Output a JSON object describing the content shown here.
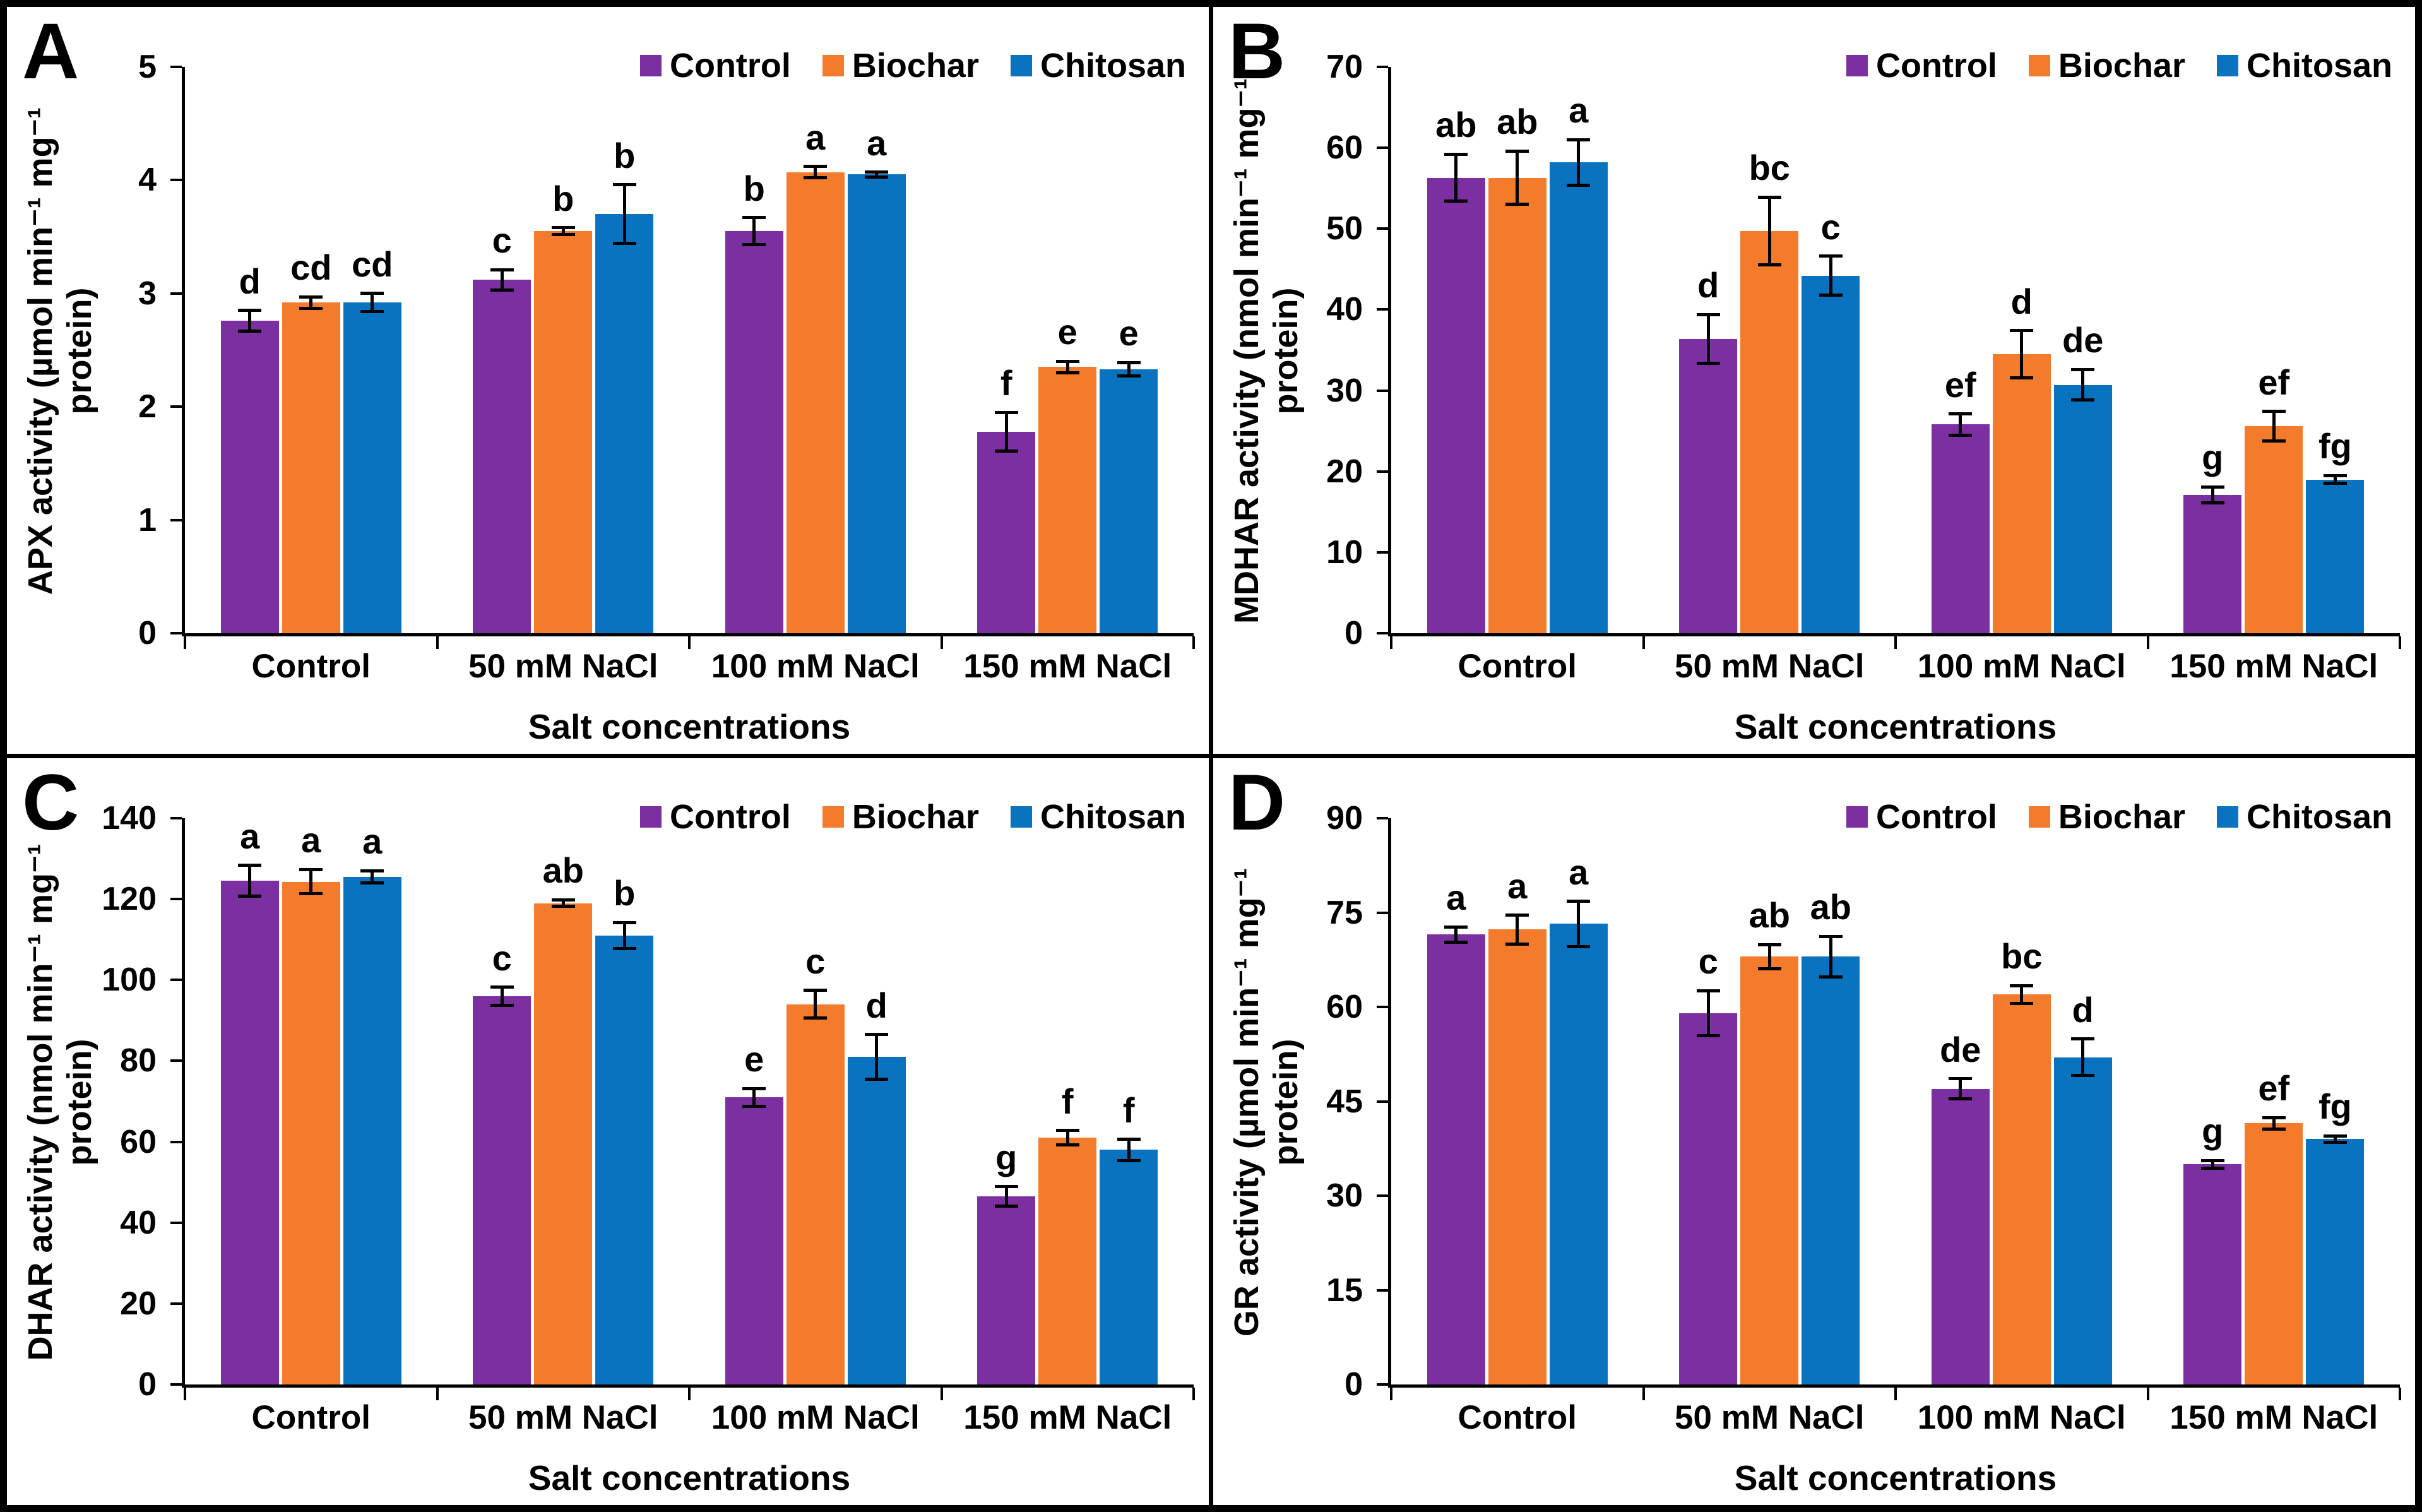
{
  "colors": {
    "series_colors": [
      "#7C2FA0",
      "#F57B2C",
      "#0A73BF"
    ],
    "axis": "#000000",
    "error_bar": "#000000",
    "panel_background": "#FFFFFF",
    "figure_border": "#000000"
  },
  "legend": [
    "Control",
    "Biochar",
    "Chitosan"
  ],
  "xlabel": "Salt concentrations",
  "categories": [
    "Control",
    "50 mM NaCl",
    "100 mM NaCl",
    "150 mM NaCl"
  ],
  "chart_data": [
    {
      "type": "bar",
      "panel": "A",
      "ylabel_lines": [
        "APX activity (µmol min⁻¹ mg⁻¹",
        "protein)"
      ],
      "xlabel": "Salt concentrations",
      "categories": [
        "Control",
        "50 mM NaCl",
        "100 mM NaCl",
        "150 mM NaCl"
      ],
      "ylim": [
        0,
        5
      ],
      "yticks": [
        0,
        1,
        2,
        3,
        4,
        5
      ],
      "grid": false,
      "legend_position": "top-right",
      "series": [
        {
          "name": "Control",
          "values": [
            2.76,
            3.12,
            3.55,
            1.78
          ],
          "errors": [
            0.09,
            0.09,
            0.12,
            0.17
          ],
          "letters": [
            "d",
            "c",
            "b",
            "f"
          ]
        },
        {
          "name": "Biochar",
          "values": [
            2.92,
            3.55,
            4.07,
            2.35
          ],
          "errors": [
            0.05,
            0.03,
            0.05,
            0.05
          ],
          "letters": [
            "cd",
            "b",
            "a",
            "e"
          ]
        },
        {
          "name": "Chitosan",
          "values": [
            2.92,
            3.7,
            4.05,
            2.33
          ],
          "errors": [
            0.08,
            0.26,
            0.02,
            0.06
          ],
          "letters": [
            "cd",
            "b",
            "a",
            "e"
          ]
        }
      ]
    },
    {
      "type": "bar",
      "panel": "B",
      "ylabel_lines": [
        "MDHAR activity (nmol min⁻¹ mg⁻¹",
        "protein)"
      ],
      "xlabel": "Salt concentrations",
      "categories": [
        "Control",
        "50 mM NaCl",
        "100 mM NaCl",
        "150 mM NaCl"
      ],
      "ylim": [
        0,
        70
      ],
      "yticks": [
        0,
        10,
        20,
        30,
        40,
        50,
        60,
        70
      ],
      "grid": false,
      "legend_position": "top-right",
      "series": [
        {
          "name": "Control",
          "values": [
            56.3,
            36.4,
            25.8,
            17.1
          ],
          "errors": [
            2.9,
            3.0,
            1.3,
            1.0
          ],
          "letters": [
            "ab",
            "d",
            "ef",
            "g"
          ]
        },
        {
          "name": "Biochar",
          "values": [
            56.3,
            49.7,
            34.5,
            25.6
          ],
          "errors": [
            3.3,
            4.2,
            2.9,
            1.8
          ],
          "letters": [
            "ab",
            "bc",
            "d",
            "ef"
          ]
        },
        {
          "name": "Chitosan",
          "values": [
            58.2,
            44.2,
            30.7,
            19.0
          ],
          "errors": [
            2.8,
            2.4,
            1.9,
            0.5
          ],
          "letters": [
            "a",
            "c",
            "de",
            "fg"
          ]
        }
      ]
    },
    {
      "type": "bar",
      "panel": "C",
      "ylabel_lines": [
        "DHAR activity (nmol min⁻¹ mg⁻¹",
        "protein)"
      ],
      "xlabel": "Salt concentrations",
      "categories": [
        "Control",
        "50 mM NaCl",
        "100 mM NaCl",
        "150 mM NaCl"
      ],
      "ylim": [
        0,
        140
      ],
      "yticks": [
        0,
        20,
        40,
        60,
        80,
        100,
        120,
        140
      ],
      "grid": false,
      "legend_position": "top-right",
      "series": [
        {
          "name": "Control",
          "values": [
            124.5,
            96.0,
            71.0,
            46.5
          ],
          "errors": [
            3.8,
            2.2,
            2.2,
            2.4
          ],
          "letters": [
            "a",
            "c",
            "e",
            "g"
          ]
        },
        {
          "name": "Biochar",
          "values": [
            124.3,
            119.0,
            94.0,
            61.0
          ],
          "errors": [
            3.0,
            0.8,
            3.4,
            1.8
          ],
          "letters": [
            "a",
            "ab",
            "c",
            "f"
          ]
        },
        {
          "name": "Chitosan",
          "values": [
            125.5,
            111.0,
            81.0,
            58.0
          ],
          "errors": [
            1.5,
            3.2,
            5.5,
            2.6
          ],
          "letters": [
            "a",
            "b",
            "d",
            "f"
          ]
        }
      ]
    },
    {
      "type": "bar",
      "panel": "D",
      "ylabel_lines": [
        "GR activity (µmol min⁻¹ mg⁻¹",
        "protein)"
      ],
      "xlabel": "Salt concentrations",
      "categories": [
        "Control",
        "50 mM NaCl",
        "100 mM NaCl",
        "150 mM NaCl"
      ],
      "ylim": [
        0,
        90
      ],
      "yticks": [
        0,
        15,
        30,
        45,
        60,
        75,
        90
      ],
      "grid": false,
      "legend_position": "top-right",
      "series": [
        {
          "name": "Control",
          "values": [
            71.5,
            59.0,
            47.0,
            35.0
          ],
          "errors": [
            1.2,
            3.6,
            1.6,
            0.6
          ],
          "letters": [
            "a",
            "c",
            "de",
            "g"
          ]
        },
        {
          "name": "Biochar",
          "values": [
            72.3,
            68.0,
            62.0,
            41.5
          ],
          "errors": [
            2.3,
            1.9,
            1.4,
            0.9
          ],
          "letters": [
            "a",
            "ab",
            "bc",
            "ef"
          ]
        },
        {
          "name": "Chitosan",
          "values": [
            73.2,
            68.0,
            52.0,
            39.0
          ],
          "errors": [
            3.6,
            3.2,
            2.9,
            0.5
          ],
          "letters": [
            "a",
            "ab",
            "d",
            "fg"
          ]
        }
      ]
    }
  ]
}
